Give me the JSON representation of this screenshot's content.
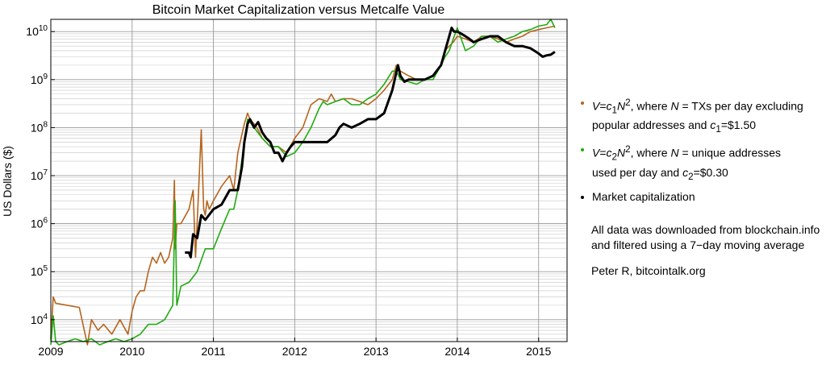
{
  "chart_data": {
    "type": "line",
    "title": "Bitcoin Market Capitalization versus Metcalfe Value",
    "ylabel": "US Dollars ($)",
    "xlabel": "",
    "yscale": "log",
    "xlim": [
      2009.0,
      2015.35
    ],
    "ylim": [
      3500,
      18000000000
    ],
    "grid": true,
    "legend_placement": "right",
    "x_ticks": [
      "2009",
      "2010",
      "2011",
      "2012",
      "2013",
      "2014",
      "2015"
    ],
    "y_ticks": [
      {
        "base": "10",
        "exp": "4"
      },
      {
        "base": "10",
        "exp": "5"
      },
      {
        "base": "10",
        "exp": "6"
      },
      {
        "base": "10",
        "exp": "7"
      },
      {
        "base": "10",
        "exp": "8"
      },
      {
        "base": "10",
        "exp": "9"
      },
      {
        "base": "10",
        "exp": "10"
      }
    ],
    "colors": {
      "metcalfe_tx": "#b5651d",
      "metcalfe_addr": "#22aa11",
      "market_cap": "#000000"
    },
    "series": [
      {
        "key": "metcalfe_tx",
        "color": "#b5651d",
        "x": [
          2009.0,
          2009.03,
          2009.06,
          2009.2,
          2009.35,
          2009.45,
          2009.5,
          2009.58,
          2009.65,
          2009.75,
          2009.85,
          2009.95,
          2010.0,
          2010.05,
          2010.1,
          2010.15,
          2010.2,
          2010.25,
          2010.3,
          2010.35,
          2010.4,
          2010.45,
          2010.5,
          2010.52,
          2010.53,
          2010.55,
          2010.6,
          2010.7,
          2010.75,
          2010.78,
          2010.8,
          2010.85,
          2010.88,
          2010.9,
          2010.92,
          2010.95,
          2011.0,
          2011.1,
          2011.2,
          2011.25,
          2011.3,
          2011.38,
          2011.42,
          2011.45,
          2011.5,
          2011.55,
          2011.6,
          2011.7,
          2011.8,
          2011.9,
          2012.0,
          2012.1,
          2012.2,
          2012.3,
          2012.4,
          2012.45,
          2012.5,
          2012.6,
          2012.7,
          2012.8,
          2012.9,
          2013.0,
          2013.1,
          2013.2,
          2013.25,
          2013.3,
          2013.4,
          2013.5,
          2013.6,
          2013.7,
          2013.8,
          2013.85,
          2013.9,
          2013.95,
          2014.0,
          2014.1,
          2014.2,
          2014.3,
          2014.4,
          2014.5,
          2014.6,
          2014.7,
          2014.8,
          2014.9,
          2015.0,
          2015.1,
          2015.2
        ],
        "y": [
          4000,
          30000,
          22000,
          20000,
          18000,
          3000,
          10000,
          6000,
          8000,
          5000,
          10000,
          5000,
          15000,
          30000,
          40000,
          40000,
          100000,
          200000,
          150000,
          250000,
          150000,
          200000,
          500000,
          8000000,
          300000,
          1000000,
          1000000,
          2000000,
          5000000,
          200000,
          1000000,
          90000000,
          2000000,
          1500000,
          3000000,
          2000000,
          3000000,
          6000000,
          10000000,
          5000000,
          30000000,
          120000000,
          200000000,
          150000000,
          120000000,
          90000000,
          60000000,
          40000000,
          40000000,
          30000000,
          60000000,
          100000000,
          300000000,
          400000000,
          350000000,
          500000000,
          350000000,
          400000000,
          400000000,
          350000000,
          300000000,
          400000000,
          600000000,
          1000000000,
          2000000000,
          1500000000,
          1200000000,
          1000000000,
          1000000000,
          1200000000,
          2000000000,
          4000000000,
          5000000000,
          6000000000,
          8000000000,
          7000000000,
          6000000000,
          8000000000,
          8000000000,
          7000000000,
          6000000000,
          7000000000,
          8000000000,
          10000000000,
          11000000000,
          12000000000,
          13000000000
        ]
      },
      {
        "key": "metcalfe_addr",
        "color": "#22aa11",
        "x": [
          2009.0,
          2009.03,
          2009.06,
          2009.1,
          2009.2,
          2009.3,
          2009.4,
          2009.5,
          2009.6,
          2009.7,
          2009.8,
          2009.9,
          2010.0,
          2010.1,
          2010.2,
          2010.3,
          2010.4,
          2010.5,
          2010.53,
          2010.55,
          2010.6,
          2010.7,
          2010.8,
          2010.9,
          2011.0,
          2011.1,
          2011.2,
          2011.25,
          2011.3,
          2011.38,
          2011.42,
          2011.5,
          2011.6,
          2011.7,
          2011.8,
          2011.9,
          2012.0,
          2012.1,
          2012.2,
          2012.3,
          2012.35,
          2012.4,
          2012.5,
          2012.6,
          2012.7,
          2012.8,
          2012.9,
          2013.0,
          2013.1,
          2013.2,
          2013.25,
          2013.3,
          2013.4,
          2013.5,
          2013.6,
          2013.7,
          2013.8,
          2013.85,
          2013.9,
          2013.95,
          2014.0,
          2014.1,
          2014.2,
          2014.3,
          2014.4,
          2014.5,
          2014.6,
          2014.7,
          2014.8,
          2014.9,
          2015.0,
          2015.1,
          2015.15,
          2015.2
        ],
        "y": [
          3000,
          12000,
          3500,
          3000,
          3500,
          4000,
          3500,
          4000,
          3000,
          3500,
          4000,
          3500,
          4000,
          5000,
          8000,
          8000,
          10000,
          20000,
          3000000,
          20000,
          50000,
          60000,
          100000,
          300000,
          300000,
          800000,
          2000000,
          2000000,
          5000000,
          50000000,
          150000000,
          100000000,
          60000000,
          40000000,
          40000000,
          25000000,
          30000000,
          50000000,
          100000000,
          250000000,
          350000000,
          300000000,
          350000000,
          400000000,
          300000000,
          300000000,
          400000000,
          500000000,
          800000000,
          1500000000,
          1500000000,
          1000000000,
          900000000,
          800000000,
          1000000000,
          1000000000,
          2000000000,
          3000000000,
          4000000000,
          7000000000,
          12000000000,
          4000000000,
          5000000000,
          8000000000,
          8000000000,
          6000000000,
          7000000000,
          8000000000,
          10000000000,
          11000000000,
          13000000000,
          14000000000,
          18000000000,
          12000000000
        ]
      },
      {
        "key": "market_cap",
        "color": "#000000",
        "x": [
          2010.65,
          2010.7,
          2010.72,
          2010.75,
          2010.8,
          2010.85,
          2010.9,
          2011.0,
          2011.1,
          2011.2,
          2011.3,
          2011.35,
          2011.38,
          2011.42,
          2011.45,
          2011.5,
          2011.55,
          2011.6,
          2011.65,
          2011.7,
          2011.75,
          2011.8,
          2011.85,
          2011.9,
          2011.95,
          2012.0,
          2012.1,
          2012.2,
          2012.3,
          2012.4,
          2012.5,
          2012.55,
          2012.6,
          2012.7,
          2012.8,
          2012.9,
          2013.0,
          2013.1,
          2013.2,
          2013.27,
          2013.3,
          2013.35,
          2013.4,
          2013.5,
          2013.6,
          2013.7,
          2013.8,
          2013.85,
          2013.9,
          2013.93,
          2013.96,
          2014.0,
          2014.05,
          2014.1,
          2014.15,
          2014.2,
          2014.3,
          2014.4,
          2014.5,
          2014.6,
          2014.7,
          2014.8,
          2014.9,
          2015.0,
          2015.05,
          2015.1,
          2015.15,
          2015.2
        ],
        "y": [
          250000,
          250000,
          200000,
          600000,
          500000,
          1500000,
          1200000,
          2000000,
          2500000,
          5000000,
          5000000,
          15000000,
          50000000,
          120000000,
          150000000,
          100000000,
          130000000,
          80000000,
          60000000,
          50000000,
          30000000,
          30000000,
          20000000,
          30000000,
          40000000,
          50000000,
          50000000,
          50000000,
          50000000,
          50000000,
          70000000,
          100000000,
          120000000,
          100000000,
          120000000,
          150000000,
          150000000,
          200000000,
          600000000,
          2000000000,
          1200000000,
          900000000,
          1000000000,
          1000000000,
          1000000000,
          1200000000,
          2000000000,
          4000000000,
          8000000000,
          12000000000,
          10000000000,
          10000000000,
          9000000000,
          8000000000,
          7000000000,
          6000000000,
          7000000000,
          8000000000,
          8000000000,
          6000000000,
          5000000000,
          5000000000,
          4500000000,
          3500000000,
          3000000000,
          3200000000,
          3300000000,
          3800000000
        ]
      }
    ]
  },
  "legend": {
    "item1": {
      "v": "V",
      "eq": "=",
      "c": "c",
      "c_sub": "1",
      "n": "N",
      "n_sup": "2",
      "where": ", where ",
      "n2": "N",
      "rest1": " = TXs per day excluding",
      "line2_pre": "popular addresses and ",
      "c2": "c",
      "c2_sub": "1",
      "line2_post": "=$1.50"
    },
    "item2": {
      "v": "V",
      "eq": "=",
      "c": "c",
      "c_sub": "2",
      "n": "N",
      "n_sup": "2",
      "where": ", where ",
      "n2": "N",
      "rest1": " = unique addresses",
      "line2_pre": "used per day and ",
      "c2": "c",
      "c2_sub": "2",
      "line2_post": "=$0.30"
    },
    "item3": {
      "label": "Market capitalization"
    }
  },
  "notes": {
    "line1": "All data was downloaded from blockchain.info",
    "line2": "and filtered using a 7−day moving average",
    "credit": "Peter R, bitcointalk.org"
  }
}
